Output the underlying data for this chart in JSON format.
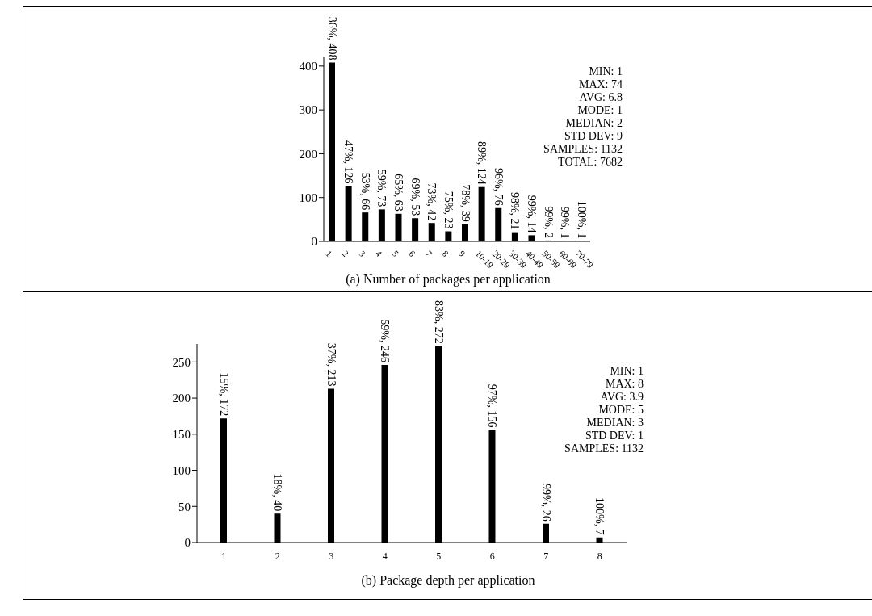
{
  "chart_data": [
    {
      "type": "bar",
      "title": "(a) Number of packages per application",
      "categories": [
        "1",
        "2",
        "3",
        "4",
        "5",
        "6",
        "7",
        "8",
        "9",
        "10-19",
        "20-29",
        "30-39",
        "40-49",
        "50-59",
        "60-69",
        "70-79"
      ],
      "values": [
        408,
        126,
        66,
        73,
        63,
        53,
        42,
        23,
        39,
        124,
        76,
        21,
        14,
        2,
        1,
        1
      ],
      "value_labels": [
        "36%, 408",
        "47%, 126",
        "53%, 66",
        "59%, 73",
        "65%, 63",
        "69%, 53",
        "73%, 42",
        "75%, 23",
        "78%, 39",
        "89%, 124",
        "96%, 76",
        "98%, 21",
        "99%, 14",
        "99%, 2",
        "99%, 1",
        "100%, 1"
      ],
      "color": "#000000",
      "ylim": [
        0,
        420
      ],
      "yticks": [
        0,
        100,
        200,
        300,
        400
      ],
      "grid": false,
      "legend": false,
      "annotations": [
        "MIN: 1",
        "MAX: 74",
        "AVG: 6.8",
        "MODE: 1",
        "MEDIAN: 2",
        "STD DEV: 9",
        "SAMPLES: 1132",
        "TOTAL: 7682"
      ]
    },
    {
      "type": "bar",
      "title": "(b) Package depth per application",
      "categories": [
        "1",
        "2",
        "3",
        "4",
        "5",
        "6",
        "7",
        "8"
      ],
      "values": [
        172,
        40,
        213,
        246,
        272,
        156,
        26,
        7
      ],
      "value_labels": [
        "15%, 172",
        "18%, 40",
        "37%, 213",
        "59%, 246",
        "83%, 272",
        "97%, 156",
        "99%, 26",
        "100%, 7"
      ],
      "color": "#000000",
      "ylim": [
        0,
        275
      ],
      "yticks": [
        0,
        50,
        100,
        150,
        200,
        250
      ],
      "grid": false,
      "legend": false,
      "annotations": [
        "MIN: 1",
        "MAX: 8",
        "AVG: 3.9",
        "MODE: 5",
        "MEDIAN: 3",
        "STD DEV: 1",
        "SAMPLES: 1132"
      ]
    }
  ]
}
